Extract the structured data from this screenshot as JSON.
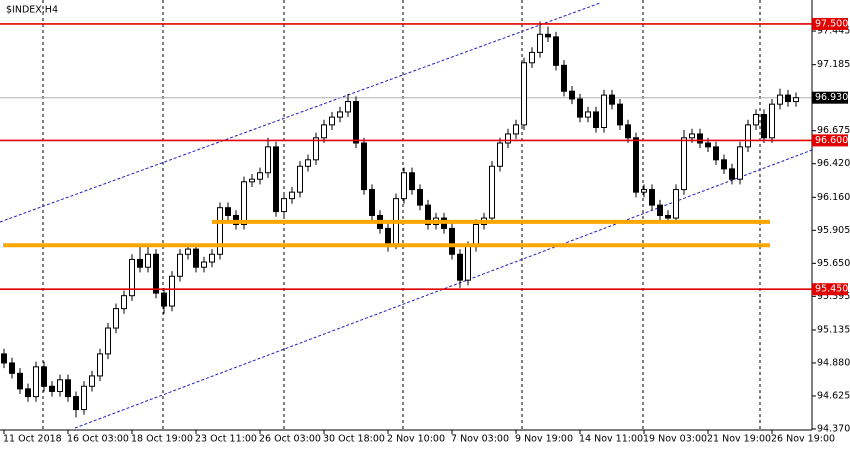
{
  "chart_data": {
    "type": "candlestick",
    "title": "$INDEX,H4",
    "categories": [
      "11 Oct 2018",
      null,
      null,
      null,
      null,
      null,
      null,
      null,
      "16 Oct 03:00",
      null,
      null,
      null,
      null,
      null,
      null,
      null,
      "18 Oct 19:00",
      null,
      null,
      null,
      null,
      null,
      null,
      null,
      "23 Oct 11:00",
      null,
      null,
      null,
      null,
      null,
      null,
      null,
      "26 Oct 03:00",
      null,
      null,
      null,
      null,
      null,
      null,
      null,
      "30 Oct 18:00",
      null,
      null,
      null,
      null,
      null,
      null,
      null,
      "2 Nov 10:00",
      null,
      null,
      null,
      null,
      null,
      null,
      null,
      "7 Nov 03:00",
      null,
      null,
      null,
      null,
      null,
      null,
      null,
      "9 Nov 19:00",
      null,
      null,
      null,
      null,
      null,
      null,
      null,
      "14 Nov 11:00",
      null,
      null,
      null,
      null,
      null,
      null,
      null,
      "19 Nov 03:00",
      null,
      null,
      null,
      null,
      null,
      null,
      null,
      "21 Nov 19:00",
      null,
      null,
      null,
      null,
      null,
      null,
      null,
      "26 Nov 19:00",
      null,
      null,
      null
    ],
    "open": [
      94.95,
      94.88,
      94.8,
      94.68,
      94.62,
      94.85,
      94.7,
      94.66,
      94.75,
      94.62,
      94.52,
      94.7,
      94.78,
      94.95,
      95.15,
      95.3,
      95.4,
      95.68,
      95.62,
      95.72,
      95.42,
      95.32,
      95.55,
      95.72,
      95.76,
      95.62,
      95.66,
      95.72,
      96.08,
      96.02,
      95.95,
      96.28,
      96.3,
      96.35,
      96.55,
      96.05,
      96.15,
      96.2,
      96.4,
      96.45,
      96.62,
      96.72,
      96.78,
      96.82,
      96.9,
      96.58,
      96.22,
      96.02,
      95.92,
      95.8,
      96.15,
      96.35,
      96.22,
      96.1,
      95.95,
      96.0,
      95.92,
      95.72,
      95.52,
      95.78,
      95.95,
      96.0,
      96.4,
      96.58,
      96.65,
      96.72,
      97.2,
      97.28,
      97.42,
      97.4,
      97.18,
      96.98,
      96.92,
      96.78,
      96.82,
      96.7,
      96.95,
      96.88,
      96.72,
      96.62,
      96.2,
      96.22,
      96.1,
      96.02,
      96.0,
      96.22,
      96.62,
      96.65,
      96.58,
      96.55,
      96.45,
      96.38,
      96.3,
      96.55,
      96.72,
      96.8,
      96.62,
      96.88,
      96.95,
      96.9
    ],
    "high": [
      94.99,
      94.92,
      94.84,
      94.72,
      94.89,
      94.89,
      94.74,
      94.79,
      94.79,
      94.66,
      94.74,
      94.82,
      94.99,
      95.19,
      95.34,
      95.44,
      95.72,
      95.8,
      95.78,
      95.76,
      95.46,
      95.59,
      95.76,
      95.8,
      95.8,
      95.7,
      95.76,
      96.12,
      96.12,
      96.06,
      96.32,
      96.34,
      96.39,
      96.62,
      96.59,
      96.19,
      96.24,
      96.44,
      96.49,
      96.66,
      96.76,
      96.82,
      96.86,
      96.96,
      96.94,
      96.62,
      96.26,
      96.06,
      95.96,
      96.19,
      96.39,
      96.39,
      96.26,
      96.14,
      96.04,
      96.04,
      95.96,
      95.76,
      95.82,
      95.99,
      96.04,
      96.44,
      96.62,
      96.69,
      96.76,
      97.24,
      97.32,
      97.52,
      97.48,
      97.44,
      97.22,
      97.02,
      96.96,
      96.86,
      96.86,
      96.99,
      96.99,
      96.92,
      96.76,
      96.66,
      96.26,
      96.26,
      96.14,
      96.06,
      96.26,
      96.68,
      96.69,
      96.69,
      96.62,
      96.59,
      96.49,
      96.42,
      96.59,
      96.76,
      96.84,
      96.84,
      96.92,
      97.0,
      96.99,
      96.97
    ],
    "low": [
      94.84,
      94.76,
      94.64,
      94.58,
      94.58,
      94.66,
      94.62,
      94.62,
      94.58,
      94.46,
      94.48,
      94.66,
      94.74,
      94.91,
      95.11,
      95.26,
      95.36,
      95.58,
      95.58,
      95.38,
      95.26,
      95.28,
      95.51,
      95.68,
      95.58,
      95.58,
      95.62,
      95.68,
      95.98,
      95.91,
      95.91,
      96.24,
      96.26,
      96.31,
      96.01,
      96.01,
      96.11,
      96.16,
      96.36,
      96.41,
      96.58,
      96.68,
      96.74,
      96.78,
      96.54,
      96.18,
      95.98,
      95.88,
      95.74,
      95.76,
      96.11,
      96.18,
      96.06,
      95.91,
      95.91,
      95.88,
      95.68,
      95.46,
      95.48,
      95.74,
      95.91,
      95.96,
      96.36,
      96.54,
      96.61,
      96.68,
      97.16,
      97.24,
      97.36,
      97.14,
      96.94,
      96.88,
      96.74,
      96.74,
      96.66,
      96.66,
      96.84,
      96.68,
      96.58,
      96.16,
      96.16,
      96.06,
      95.98,
      95.96,
      95.96,
      96.18,
      96.58,
      96.54,
      96.51,
      96.41,
      96.34,
      96.26,
      96.26,
      96.51,
      96.68,
      96.58,
      96.58,
      96.84,
      96.86,
      96.86
    ],
    "close": [
      94.88,
      94.8,
      94.68,
      94.62,
      94.85,
      94.7,
      94.66,
      94.75,
      94.62,
      94.52,
      94.7,
      94.78,
      94.95,
      95.15,
      95.3,
      95.4,
      95.68,
      95.62,
      95.72,
      95.42,
      95.32,
      95.55,
      95.72,
      95.76,
      95.62,
      95.66,
      95.72,
      96.08,
      96.02,
      95.95,
      96.28,
      96.3,
      96.35,
      96.55,
      96.05,
      96.15,
      96.2,
      96.4,
      96.45,
      96.62,
      96.72,
      96.78,
      96.82,
      96.9,
      96.58,
      96.22,
      96.02,
      95.92,
      95.8,
      96.15,
      96.35,
      96.22,
      96.1,
      95.95,
      96.0,
      95.92,
      95.72,
      95.52,
      95.78,
      95.95,
      96.0,
      96.4,
      96.58,
      96.65,
      96.72,
      97.2,
      97.28,
      97.42,
      97.4,
      97.18,
      96.98,
      96.92,
      96.78,
      96.82,
      96.7,
      96.95,
      96.88,
      96.72,
      96.62,
      96.2,
      96.22,
      96.1,
      96.02,
      96.0,
      96.22,
      96.62,
      96.65,
      96.58,
      96.55,
      96.45,
      96.38,
      96.3,
      96.55,
      96.72,
      96.8,
      96.62,
      96.88,
      96.95,
      96.9,
      96.93
    ],
    "ylim": [
      94.362,
      97.685
    ],
    "yticks": [
      {
        "value": 97.445,
        "label": "97.445"
      },
      {
        "value": 97.185,
        "label": "97.185"
      },
      {
        "value": 96.675,
        "label": "96.675"
      },
      {
        "value": 96.42,
        "label": "96.420"
      },
      {
        "value": 96.16,
        "label": "96.160"
      },
      {
        "value": 95.905,
        "label": "95.905"
      },
      {
        "value": 95.65,
        "label": "95.650"
      },
      {
        "value": 95.395,
        "label": "95.395"
      },
      {
        "value": 95.135,
        "label": "95.135"
      },
      {
        "value": 94.88,
        "label": "94.880"
      },
      {
        "value": 94.625,
        "label": "94.625"
      },
      {
        "value": 94.37,
        "label": "94.370"
      }
    ],
    "levels": [
      {
        "value": 97.5,
        "label": "97.500",
        "color": "#e00000"
      },
      {
        "value": 96.6,
        "label": "96.600",
        "color": "#e00000"
      },
      {
        "value": 95.45,
        "label": "95.450",
        "color": "#e00000"
      },
      {
        "value": 95.97,
        "color": "#ffa500"
      },
      {
        "value": 95.79,
        "color": "#ffa500"
      }
    ],
    "current_price": {
      "value": 96.93,
      "label": "96.930"
    }
  }
}
